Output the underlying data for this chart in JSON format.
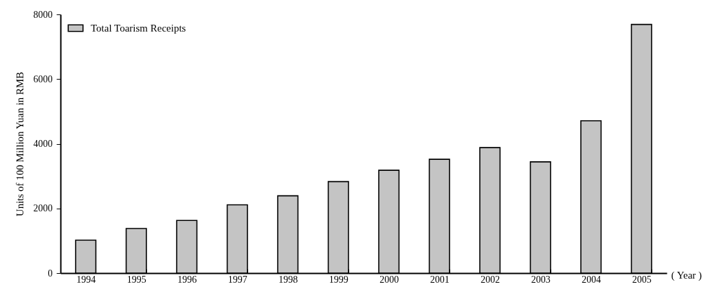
{
  "chart_data": {
    "type": "bar",
    "ylabel": "Units of 100 Million Yuan in RMB",
    "xlabel": "( Year )",
    "categories": [
      "1994",
      "1995",
      "1996",
      "1997",
      "1998",
      "1999",
      "2000",
      "2001",
      "2002",
      "2003",
      "2004",
      "2005"
    ],
    "series": [
      {
        "name": "Total Toarism Receipts",
        "color": "#c4c4c4",
        "values": [
          1020,
          1380,
          1630,
          2110,
          2390,
          2830,
          3180,
          3520,
          3880,
          3440,
          4710,
          7690
        ]
      }
    ],
    "ylim": [
      0,
      8000
    ],
    "yticks": [
      0,
      2000,
      4000,
      6000,
      8000
    ],
    "grid": false,
    "legend": "top left"
  }
}
